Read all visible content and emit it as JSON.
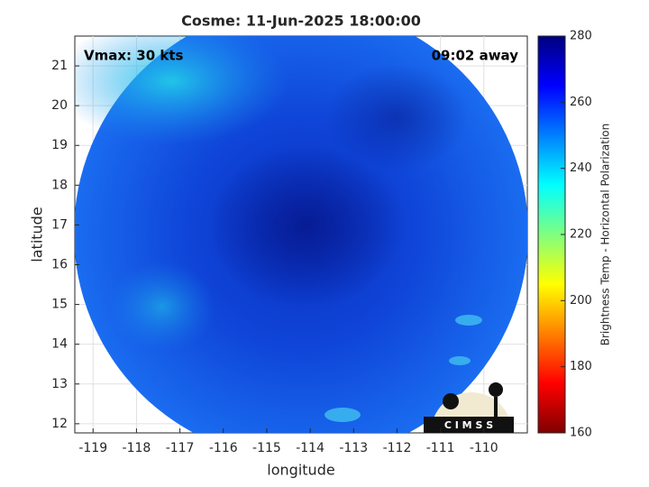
{
  "chart_data": {
    "type": "image",
    "title": "Cosme: 11-Jun-2025 18:00:00",
    "xlabel": "longitude",
    "ylabel": "latitude",
    "xlim": [
      -119.42,
      -109.0
    ],
    "ylim": [
      11.77,
      21.75
    ],
    "xticks": [
      -119,
      -118,
      -117,
      -116,
      -115,
      -114,
      -113,
      -112,
      -111,
      -110
    ],
    "yticks": [
      12,
      13,
      14,
      15,
      16,
      17,
      18,
      19,
      20,
      21
    ],
    "grid": true,
    "annotations": {
      "left": "Vmax: 30 kts",
      "right": "09:02 away"
    },
    "logo": "C I M S S",
    "colorbar": {
      "label": "Brightness Temp - Horizontal Polarization",
      "colormap": "jet",
      "lim": [
        160,
        280
      ],
      "ticks": [
        160,
        180,
        200,
        220,
        240,
        260,
        280
      ]
    }
  }
}
